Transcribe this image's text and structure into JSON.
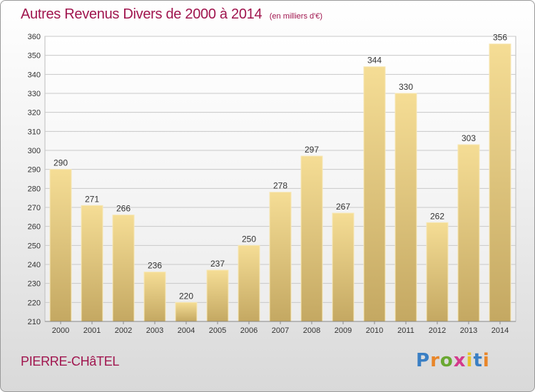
{
  "chart_data": {
    "type": "bar",
    "title": "Autres Revenus Divers de 2000 à 2014",
    "subtitle": "(en milliers d'€)",
    "categories": [
      "2000",
      "2001",
      "2002",
      "2003",
      "2004",
      "2005",
      "2006",
      "2007",
      "2008",
      "2009",
      "2010",
      "2011",
      "2012",
      "2013",
      "2014"
    ],
    "values": [
      290,
      271,
      266,
      236,
      220,
      237,
      250,
      278,
      297,
      267,
      344,
      330,
      262,
      303,
      356
    ],
    "ylim": [
      210,
      360
    ],
    "yticks": [
      210,
      220,
      230,
      240,
      250,
      260,
      270,
      280,
      290,
      300,
      310,
      320,
      330,
      340,
      350,
      360
    ],
    "grid": true,
    "bar_color": "#e8cf86",
    "title_color": "#a0154e"
  },
  "footer": {
    "commune": "PIERRE-CHâTEL",
    "logo": {
      "letters": [
        "P",
        "r",
        "o",
        "x",
        "i",
        "t",
        "i"
      ],
      "colors": [
        "#3a7fc4",
        "#e8862a",
        "#6aa832",
        "#d43a8c",
        "#e8c22a",
        "#3a7fc4",
        "#e8862a"
      ]
    }
  }
}
